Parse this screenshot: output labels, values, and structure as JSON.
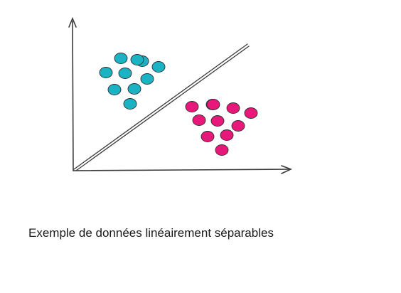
{
  "figure": {
    "caption": "Exemple de données linéairement séparables",
    "colors": {
      "ink": "#3a3a3a",
      "cluster_a": "#1bb2c4",
      "cluster_b": "#e8187a",
      "outline": "#2e2e2e"
    },
    "groups": [
      {
        "name": "cluster-a",
        "color_key": "cluster_a",
        "count": 10
      },
      {
        "name": "cluster-b",
        "color_key": "cluster_b",
        "count": 11
      }
    ]
  }
}
